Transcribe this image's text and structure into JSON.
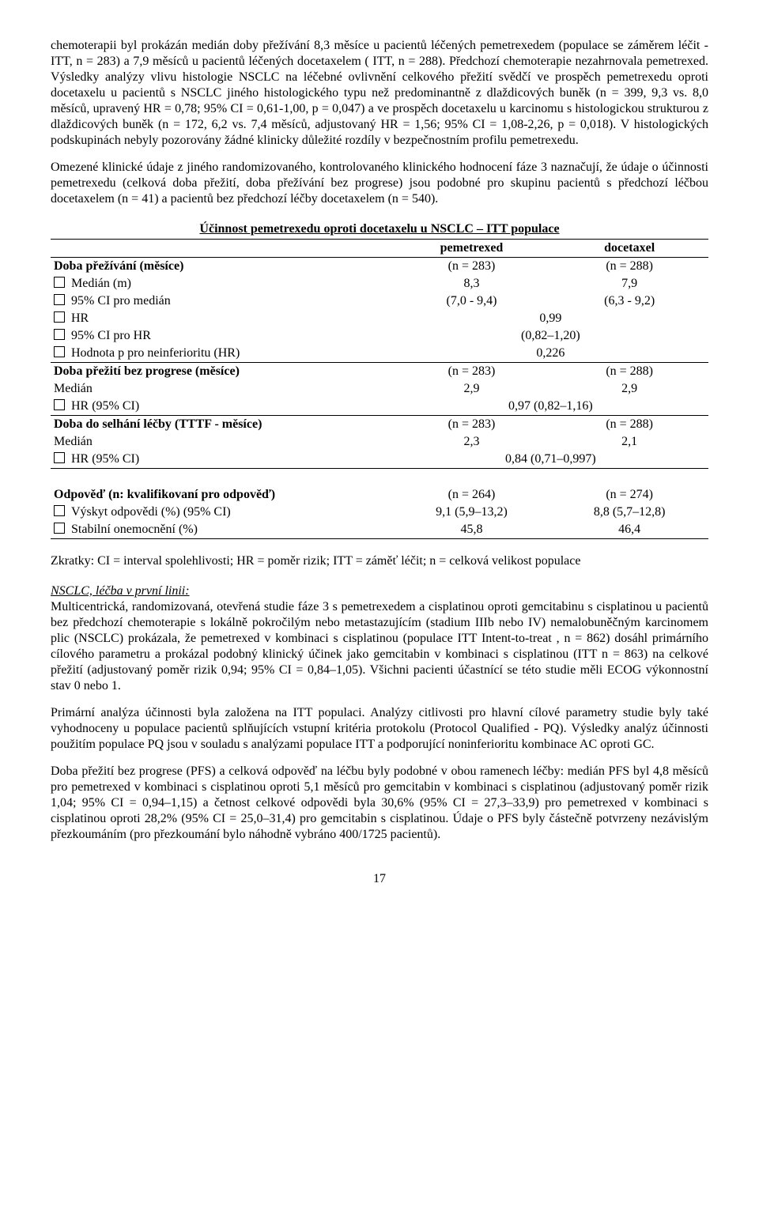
{
  "para1": "chemoterapii byl prokázán medián doby přežívání 8,3 měsíce u pacientů léčených pemetrexedem (populace se záměrem léčit - ITT, n = 283) a 7,9 měsíců u pacientů léčených docetaxelem ( ITT, n = 288). Předchozí chemoterapie nezahrnovala pemetrexed. Výsledky analýzy vlivu histologie NSCLC na léčebné ovlivnění celkového přežití svědčí ve prospěch pemetrexedu oproti docetaxelu u pacientů s NSCLC jiného histologického typu než predominantně z dlaždicových buněk (n = 399, 9,3 vs. 8,0 měsíců, upravený HR = 0,78; 95% CI = 0,61-1,00, p = 0,047) a ve prospěch docetaxelu u karcinomu s histologickou strukturou z dlaždicových buněk (n = 172, 6,2 vs. 7,4 měsíců, adjustovaný HR = 1,56; 95% CI = 1,08-2,26, p = 0,018). V histologických podskupinách nebyly pozorovány žádné klinicky důležité rozdíly v bezpečnostním profilu pemetrexedu.",
  "para2": "Omezené klinické údaje z jiného randomizovaného, kontrolovaného klinického hodnocení fáze 3 naznačují, že údaje o účinnosti pemetrexedu (celková doba přežití, doba přežívání bez progrese) jsou podobné pro skupinu pacientů s předchozí léčbou docetaxelem (n = 41) a pacientů bez předchozí léčby docetaxelem (n = 540).",
  "table": {
    "title": "Účinnost pemetrexedu oproti docetaxelu u NSCLC – ITT populace",
    "col_pem": "pemetrexed",
    "col_doc": "docetaxel",
    "rows": [
      {
        "label": "Doba přežívání (měsíce)",
        "pem": "(n = 283)",
        "doc": "(n = 288)",
        "bold": true,
        "merge": false
      },
      {
        "label": "Medián (m)",
        "pem": "8,3",
        "doc": "7,9",
        "indent": true,
        "box": true
      },
      {
        "label": "95% CI pro medián",
        "pem": "(7,0 - 9,4)",
        "doc": "(6,3 - 9,2)",
        "indent": true,
        "box": true
      },
      {
        "label": "HR",
        "merge": "0,99",
        "indent": true,
        "box": true
      },
      {
        "label": "95% CI pro HR",
        "merge": "(0,82–1,20)",
        "indent": true,
        "box": true
      },
      {
        "label": "Hodnota p pro neinferioritu (HR)",
        "merge": "0,226",
        "indent": true,
        "box": true,
        "border_bottom": true
      },
      {
        "label": "Doba přežití bez progrese (měsíce)",
        "pem": "(n = 283)",
        "doc": "(n = 288)",
        "bold": true
      },
      {
        "label": "Medián",
        "pem": "2,9",
        "doc": "2,9",
        "indent": true
      },
      {
        "label": "HR (95% CI)",
        "merge": "0,97 (0,82–1,16)",
        "indent": true,
        "box": true,
        "border_bottom": true
      },
      {
        "label": "Doba do selhání léčby (TTTF - měsíce)",
        "pem": "(n = 283)",
        "doc": "(n = 288)",
        "bold": true
      },
      {
        "label": "Medián",
        "pem": "2,3",
        "doc": "2,1",
        "indent": true
      },
      {
        "label": "HR (95% CI)",
        "merge": "0,84 (0,71–0,997)",
        "indent": true,
        "box": true,
        "border_bottom": true
      },
      {
        "label": "",
        "pem": "",
        "doc": "",
        "spacer": true
      },
      {
        "label": "Odpověď (n: kvalifikovaní pro odpověď)",
        "pem": "(n = 264)",
        "doc": "(n = 274)",
        "bold": true
      },
      {
        "label": "Výskyt odpovědi (%) (95% CI)",
        "pem": "9,1 (5,9–13,2)",
        "doc": "8,8 (5,7–12,8)",
        "indent": true,
        "box": true
      },
      {
        "label": "Stabilní onemocnění (%)",
        "pem": "45,8",
        "doc": "46,4",
        "indent": true,
        "box": true,
        "border_bottom": true
      }
    ]
  },
  "abbrev": "Zkratky: CI = interval spolehlivosti; HR = poměr rizik; ITT = záměť léčit; n = celková velikost populace",
  "subheading": "NSCLC, léčba v první linii:",
  "para3": "Multicentrická, randomizovaná, otevřená studie fáze 3 s pemetrexedem a cisplatinou oproti gemcitabinu s cisplatinou u pacientů bez předchozí chemoterapie s lokálně pokročilým nebo metastazujícím (stadium IIIb nebo IV) nemalobuněčným karcinomem plic (NSCLC) prokázala, že pemetrexed v kombinaci s cisplatinou (populace ITT Intent-to-treat , n = 862) dosáhl primárního cílového parametru a prokázal podobný klinický účinek jako gemcitabin v kombinaci s cisplatinou (ITT n = 863) na celkové přežití (adjustovaný poměr rizik 0,94; 95% CI = 0,84–1,05). Všichni pacienti účastnící se této studie měli ECOG výkonnostní stav 0 nebo 1.",
  "para4": "Primární analýza účinnosti byla založena na ITT populaci. Analýzy citlivosti pro hlavní cílové parametry studie byly také vyhodnoceny u populace pacientů splňujících vstupní kritéria protokolu (Protocol Qualified - PQ). Výsledky analýz účinnosti použitím populace PQ jsou v souladu s analýzami populace ITT a podporující noninferioritu kombinace AC oproti GC.",
  "para5": "Doba přežití bez progrese (PFS) a celková odpověď na léčbu byly podobné v obou ramenech léčby: medián PFS byl 4,8 měsíců pro pemetrexed v kombinaci s cisplatinou oproti 5,1 měsíců pro gemcitabin v kombinaci s cisplatinou (adjustovaný poměr rizik 1,04; 95% CI = 0,94–1,15) a  četnost celkové odpovědi byla 30,6% (95% CI = 27,3–33,9) pro pemetrexed v kombinaci s cisplatinou oproti 28,2% (95% CI = 25,0–31,4) pro gemcitabin s cisplatinou. Údaje o PFS byly částečně potvrzeny nezávislým přezkoumáním (pro přezkoumání bylo náhodně vybráno 400/1725 pacientů).",
  "page": "17"
}
